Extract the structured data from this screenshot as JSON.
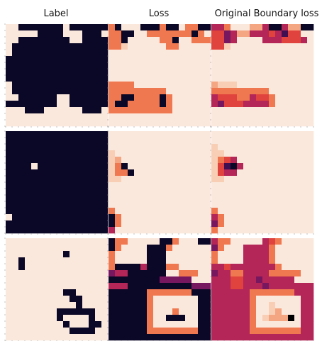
{
  "titles": [
    "Label",
    "Loss",
    "Original Boundary loss"
  ],
  "palette": {
    "colors": [
      "#0b0726",
      "#3f0f52",
      "#77175f",
      "#b42558",
      "#e0433d",
      "#f07850",
      "#f4a582",
      "#f8cfb5",
      "#fbe8dd"
    ]
  },
  "panels": [
    [
      [
        "8800000008000000",
        "8888800008880008",
        "8800000000880000",
        "8000000000000000",
        "8000000000000000",
        "0000000000000000",
        "0000000000000000",
        "0000000000000000",
        "0000000000000000",
        "8000000000000000",
        "8000000000000000",
        "8800000088000000",
        "0000000088000000",
        "8880008888880008",
        "8888888888888888",
        "8888888888888888"
      ],
      [
        "5088800050085500",
        "5500885555555058",
        "5508888855088555",
        "5578888885588888",
        "8888888888888888",
        "8888888888888888",
        "8888888888888888",
        "8888888888888888",
        "8888888888888888",
        "5555888888888888",
        "5555555558888888",
        "5500555505888888",
        "5005555505888888",
        "5555555555888888",
        "8888888888888888",
        "8888888888888888"
      ],
      [
        "3358886630036600",
        "4423663334314488",
        "4423888833344438",
        "4478888888888888",
        "8888888888888888",
        "8888888888888888",
        "8888888888888888",
        "8888888888888888",
        "8888888888888888",
        "6777888888888888",
        "5555555558888888",
        "3444553445888888",
        "3244433335888888",
        "8888888888888888",
        "8888888888888888",
        "8888888888888888"
      ]
    ],
    [
      [
        "0000000000000000",
        "0000000000000000",
        "0000000000000000",
        "0000000000000000",
        "0000000000000000",
        "0000800000000000",
        "0000000000000000",
        "0000000000000000",
        "0000000000000000",
        "0000000000000000",
        "0000000000000000",
        "0000000000000000",
        "0000000000000000",
        "8000000000000000",
        "0000000000000000",
        "0000000000000000"
      ],
      [
        "8888888888888888",
        "8888888888888888",
        "8888888888888888",
        "7888888888888888",
        "7688888888888888",
        "7508888888888888",
        "7550888888888888",
        "7788888888888888",
        "8888888888888888",
        "8888888888888888",
        "8888888888888888",
        "8888888888888888",
        "5888888888888888",
        "0588888888888888",
        "0588888888888888",
        "3888888888888888"
      ],
      [
        "8888888888888888",
        "8888888888888888",
        "7888888888888888",
        "7788888888888888",
        "7543888888888888",
        "7410388888888888",
        "7433888888888888",
        "7788888888888888",
        "8888888888888888",
        "8888888888888888",
        "8888888888888888",
        "8888888888888888",
        "5888888888888888",
        "3588888888888888",
        "2588888888888888",
        "5888888888888888"
      ]
    ],
    [
      [
        "8888888888888888",
        "8888888888888888",
        "8888888880888888",
        "8808888888888888",
        "8808888888888888",
        "8888888888888888",
        "8888888888888888",
        "8888888888888888",
        "8888888880088888",
        "8888888888008888",
        "8888888888808888",
        "8888888800000088",
        "8888888808888088",
        "8888888880888008",
        "8888888888000088",
        "8888888888888888"
      ],
      [
        "0558888800588800",
        "0588880005888888",
        "5888880008888888",
        "5888880008888888",
        "5000030005588888",
        "2330000008855588",
        "0000000022222888",
        "3330000000000222",
        "0000005555555000",
        "0000005888888800",
        "0000005888888800",
        "0000005888588800",
        "0000005880008800",
        "0000005888888800",
        "0000005555555500",
        "0000000000000000"
      ],
      [
        "3558888834588888",
        "2588833335888888",
        "5888833335888888",
        "5888833335888888",
        "3343333333588888",
        "2335533335555588",
        "3334433233333888",
        "3334433323333333",
        "3333335555555333",
        "3333335888888833",
        "3333335887888833",
        "3333335887688833",
        "3333335876669833",
        "3333335888888833",
        "3333335555555533",
        "3333333333333333"
      ]
    ]
  ]
}
